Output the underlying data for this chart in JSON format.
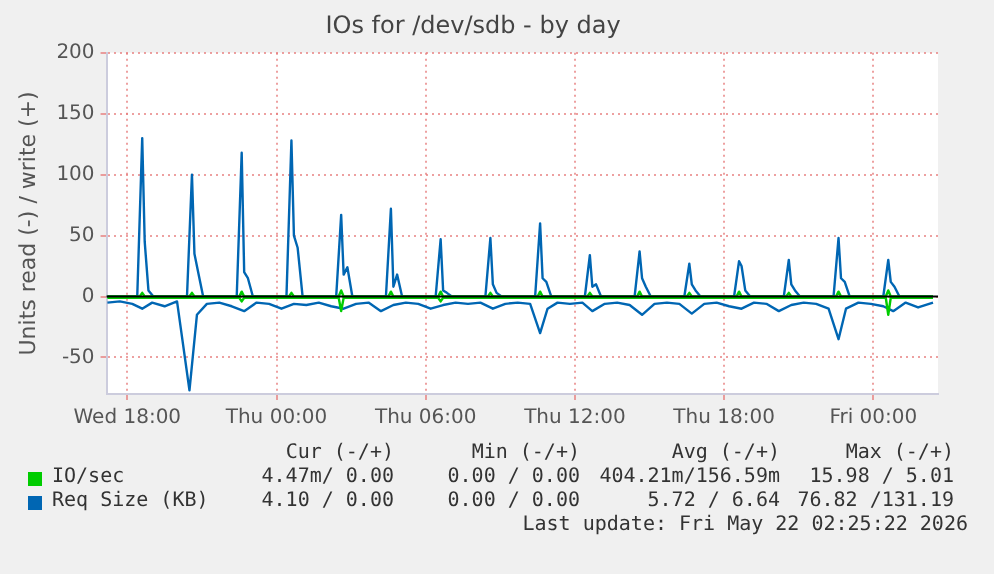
{
  "chart_data": {
    "type": "line",
    "title": "IOs for /dev/sdb - by day",
    "ylabel": "Units read (-) / write (+)",
    "xlim": [
      "2026-05-20T17:10",
      "2026-05-22T02:36"
    ],
    "xticks": [
      {
        "value": "2026-05-20T18:00",
        "label": "Wed 18:00"
      },
      {
        "value": "2026-05-21T00:00",
        "label": "Thu 00:00"
      },
      {
        "value": "2026-05-21T06:00",
        "label": "Thu 06:00"
      },
      {
        "value": "2026-05-21T12:00",
        "label": "Thu 12:00"
      },
      {
        "value": "2026-05-21T18:00",
        "label": "Thu 18:00"
      },
      {
        "value": "2026-05-22T00:00",
        "label": "Fri 00:00"
      }
    ],
    "ylim": [
      -80,
      200
    ],
    "yticks": [
      -50,
      0,
      50,
      100,
      150,
      200
    ],
    "grid": true,
    "legend": "bottom",
    "marker": "none",
    "line_style": "solid",
    "ref_lines": [
      {
        "axis": "y",
        "value": 0,
        "color": "#000000"
      }
    ],
    "series": [
      {
        "name": "IO/sec",
        "color": "#00cc00",
        "x": [
          "2026-05-20T17:12",
          "2026-05-20T18:30",
          "2026-05-20T18:36",
          "2026-05-20T18:42",
          "2026-05-20T20:30",
          "2026-05-20T20:36",
          "2026-05-20T20:42",
          "2026-05-20T22:30",
          "2026-05-20T22:36",
          "2026-05-20T22:42",
          "2026-05-21T00:30",
          "2026-05-21T00:36",
          "2026-05-21T00:42",
          "2026-05-21T02:30",
          "2026-05-21T02:36",
          "2026-05-21T02:42",
          "2026-05-21T04:30",
          "2026-05-21T04:36",
          "2026-05-21T04:42",
          "2026-05-21T06:30",
          "2026-05-21T06:36",
          "2026-05-21T06:42",
          "2026-05-21T08:30",
          "2026-05-21T08:36",
          "2026-05-21T08:42",
          "2026-05-21T10:30",
          "2026-05-21T10:36",
          "2026-05-21T10:42",
          "2026-05-21T12:30",
          "2026-05-21T12:36",
          "2026-05-21T12:42",
          "2026-05-21T14:30",
          "2026-05-21T14:36",
          "2026-05-21T14:42",
          "2026-05-21T16:30",
          "2026-05-21T16:36",
          "2026-05-21T16:42",
          "2026-05-21T18:30",
          "2026-05-21T18:36",
          "2026-05-21T18:42",
          "2026-05-21T20:30",
          "2026-05-21T20:36",
          "2026-05-21T20:42",
          "2026-05-21T22:30",
          "2026-05-21T22:36",
          "2026-05-21T22:42",
          "2026-05-22T00:30",
          "2026-05-22T00:36",
          "2026-05-22T00:42",
          "2026-05-22T02:24"
        ],
        "values": [
          0,
          0,
          3,
          0,
          0,
          3,
          0,
          0,
          4,
          0,
          0,
          3,
          0,
          0,
          5,
          0,
          0,
          4,
          0,
          0,
          4,
          0,
          0,
          3,
          0,
          0,
          4,
          0,
          0,
          3,
          0,
          0,
          4,
          0,
          0,
          3,
          0,
          0,
          4,
          0,
          0,
          3,
          0,
          0,
          4,
          0,
          0,
          5,
          0,
          0
        ]
      },
      {
        "color": "#00cc00",
        "x": [
          "2026-05-20T17:12",
          "2026-05-20T22:30",
          "2026-05-20T22:36",
          "2026-05-20T22:42",
          "2026-05-21T02:30",
          "2026-05-21T02:36",
          "2026-05-21T02:42",
          "2026-05-21T06:30",
          "2026-05-21T06:36",
          "2026-05-21T06:42",
          "2026-05-22T00:30",
          "2026-05-22T00:36",
          "2026-05-22T00:42",
          "2026-05-22T02:24"
        ],
        "values": [
          -1,
          -1,
          -4,
          -1,
          -1,
          -12,
          -1,
          -1,
          -4,
          -1,
          -1,
          -15,
          -1,
          -1
        ]
      },
      {
        "name": "Req Size (KB)",
        "color": "#0066b3",
        "x": [
          "2026-05-20T17:12",
          "2026-05-20T18:24",
          "2026-05-20T18:36",
          "2026-05-20T18:42",
          "2026-05-20T18:51",
          "2026-05-20T19:03",
          "2026-05-20T20:24",
          "2026-05-20T20:36",
          "2026-05-20T20:42",
          "2026-05-20T20:51",
          "2026-05-20T21:03",
          "2026-05-20T22:24",
          "2026-05-20T22:36",
          "2026-05-20T22:42",
          "2026-05-20T22:51",
          "2026-05-20T23:03",
          "2026-05-21T00:24",
          "2026-05-21T00:36",
          "2026-05-21T00:42",
          "2026-05-21T00:51",
          "2026-05-21T01:03",
          "2026-05-21T02:24",
          "2026-05-21T02:36",
          "2026-05-21T02:42",
          "2026-05-21T02:51",
          "2026-05-21T03:03",
          "2026-05-21T04:24",
          "2026-05-21T04:36",
          "2026-05-21T04:42",
          "2026-05-21T04:51",
          "2026-05-21T05:03",
          "2026-05-21T06:24",
          "2026-05-21T06:36",
          "2026-05-21T06:42",
          "2026-05-21T06:51",
          "2026-05-21T07:03",
          "2026-05-21T08:24",
          "2026-05-21T08:36",
          "2026-05-21T08:42",
          "2026-05-21T08:51",
          "2026-05-21T09:03",
          "2026-05-21T10:24",
          "2026-05-21T10:36",
          "2026-05-21T10:42",
          "2026-05-21T10:51",
          "2026-05-21T11:03",
          "2026-05-21T12:24",
          "2026-05-21T12:36",
          "2026-05-21T12:42",
          "2026-05-21T12:51",
          "2026-05-21T13:03",
          "2026-05-21T14:24",
          "2026-05-21T14:36",
          "2026-05-21T14:42",
          "2026-05-21T14:51",
          "2026-05-21T15:03",
          "2026-05-21T16:24",
          "2026-05-21T16:36",
          "2026-05-21T16:42",
          "2026-05-21T16:51",
          "2026-05-21T17:03",
          "2026-05-21T18:24",
          "2026-05-21T18:36",
          "2026-05-21T18:42",
          "2026-05-21T18:51",
          "2026-05-21T19:03",
          "2026-05-21T20:24",
          "2026-05-21T20:36",
          "2026-05-21T20:42",
          "2026-05-21T20:51",
          "2026-05-21T21:03",
          "2026-05-21T22:24",
          "2026-05-21T22:36",
          "2026-05-21T22:42",
          "2026-05-21T22:51",
          "2026-05-21T23:03",
          "2026-05-22T00:24",
          "2026-05-22T00:36",
          "2026-05-22T00:42",
          "2026-05-22T00:51",
          "2026-05-22T01:03",
          "2026-05-22T02:24"
        ],
        "values": [
          0,
          0,
          130,
          45,
          5,
          0,
          0,
          100,
          35,
          20,
          0,
          0,
          118,
          20,
          15,
          0,
          0,
          128,
          50,
          40,
          0,
          0,
          67,
          18,
          24,
          0,
          0,
          72,
          8,
          18,
          0,
          0,
          47,
          5,
          3,
          0,
          0,
          48,
          10,
          3,
          0,
          0,
          60,
          15,
          12,
          0,
          0,
          34,
          8,
          10,
          0,
          0,
          37,
          15,
          8,
          0,
          0,
          27,
          10,
          5,
          0,
          0,
          29,
          25,
          5,
          0,
          0,
          30,
          10,
          5,
          0,
          0,
          48,
          15,
          12,
          0,
          0,
          30,
          12,
          8,
          0,
          0
        ]
      },
      {
        "color": "#0066b3",
        "x": [
          "2026-05-20T17:12",
          "2026-05-20T17:42",
          "2026-05-20T18:12",
          "2026-05-20T18:36",
          "2026-05-20T19:00",
          "2026-05-20T19:30",
          "2026-05-20T20:00",
          "2026-05-20T20:30",
          "2026-05-20T20:48",
          "2026-05-20T21:12",
          "2026-05-20T21:42",
          "2026-05-20T22:12",
          "2026-05-20T22:42",
          "2026-05-20T23:12",
          "2026-05-20T23:42",
          "2026-05-21T00:12",
          "2026-05-21T00:42",
          "2026-05-21T01:12",
          "2026-05-21T01:42",
          "2026-05-21T02:12",
          "2026-05-21T02:42",
          "2026-05-21T03:12",
          "2026-05-21T03:42",
          "2026-05-21T04:12",
          "2026-05-21T04:42",
          "2026-05-21T05:12",
          "2026-05-21T05:42",
          "2026-05-21T06:12",
          "2026-05-21T06:42",
          "2026-05-21T07:12",
          "2026-05-21T07:42",
          "2026-05-21T08:12",
          "2026-05-21T08:42",
          "2026-05-21T09:12",
          "2026-05-21T09:42",
          "2026-05-21T10:12",
          "2026-05-21T10:36",
          "2026-05-21T10:54",
          "2026-05-21T11:18",
          "2026-05-21T11:48",
          "2026-05-21T12:18",
          "2026-05-21T12:42",
          "2026-05-21T13:12",
          "2026-05-21T13:42",
          "2026-05-21T14:12",
          "2026-05-21T14:42",
          "2026-05-21T15:12",
          "2026-05-21T15:42",
          "2026-05-21T16:12",
          "2026-05-21T16:42",
          "2026-05-21T17:12",
          "2026-05-21T17:42",
          "2026-05-21T18:12",
          "2026-05-21T18:42",
          "2026-05-21T19:12",
          "2026-05-21T19:42",
          "2026-05-21T20:12",
          "2026-05-21T20:42",
          "2026-05-21T21:12",
          "2026-05-21T21:42",
          "2026-05-21T22:12",
          "2026-05-21T22:36",
          "2026-05-21T22:54",
          "2026-05-21T23:24",
          "2026-05-21T23:54",
          "2026-05-22T00:24",
          "2026-05-22T00:48",
          "2026-05-22T01:18",
          "2026-05-22T01:48",
          "2026-05-22T02:24"
        ],
        "values": [
          -5,
          -4,
          -6,
          -10,
          -5,
          -8,
          -4,
          -77,
          -15,
          -6,
          -5,
          -8,
          -12,
          -5,
          -6,
          -10,
          -6,
          -7,
          -5,
          -8,
          -10,
          -6,
          -5,
          -12,
          -7,
          -5,
          -6,
          -10,
          -7,
          -5,
          -6,
          -5,
          -10,
          -6,
          -5,
          -6,
          -30,
          -10,
          -5,
          -6,
          -5,
          -12,
          -6,
          -5,
          -7,
          -15,
          -6,
          -5,
          -6,
          -14,
          -6,
          -5,
          -8,
          -10,
          -5,
          -6,
          -12,
          -7,
          -5,
          -6,
          -10,
          -35,
          -10,
          -5,
          -6,
          -8,
          -12,
          -5,
          -9,
          -5
        ]
      }
    ],
    "annotations": [
      "Cur (-/+)",
      "Min (-/+)",
      "Avg (-/+)",
      "Max (-/+)",
      "4.47m/ 0.00",
      "0.00 / 0.00",
      "404.21m/156.59m",
      "15.98 / 5.01",
      "4.10 / 0.00",
      "0.00 / 0.00",
      "5.72 / 6.64",
      "76.82 /131.19",
      "Last update: Fri May 22 02:25:22 2026"
    ]
  }
}
